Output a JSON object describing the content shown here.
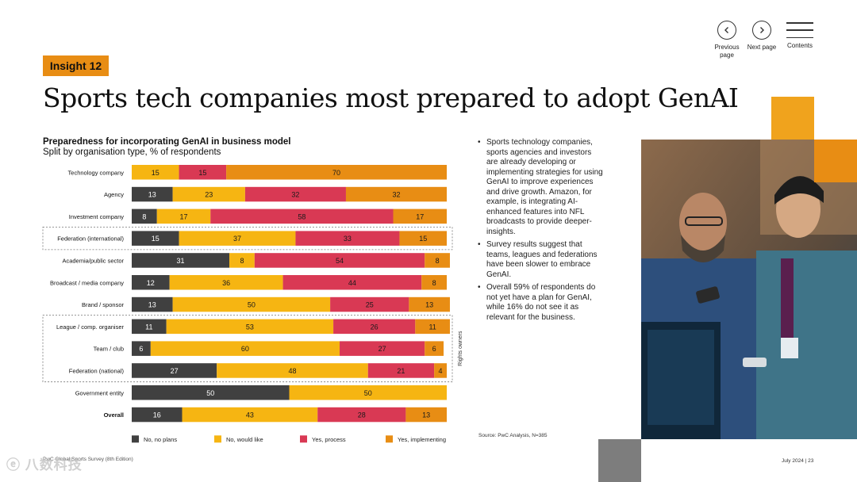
{
  "nav": {
    "previous_label": "Previous page",
    "next_label": "Next page",
    "contents_label": "Contents"
  },
  "tag": "Insight 12",
  "title": "Sports tech companies most prepared to adopt GenAI",
  "bullets": [
    "Sports technology companies, sports agencies and investors are already developing or implementing strategies for using GenAI to improve experiences and drive growth. Amazon, for example, is integrating AI-enhanced features into NFL broadcasts to provide deeper-insights.",
    "Survey results suggest that teams, leagues and federations have been slower to embrace GenAI.",
    "Overall 59% of respondents do not yet have a plan for GenAI, while 16% do not see it as relevant for the business."
  ],
  "source": "Source: PwC Analysis, N=385",
  "footer": {
    "left": "PwC Global Sports Survey (8th Edition)",
    "right": "July 2024 | 23"
  },
  "watermark": "八数科技",
  "colors": {
    "accent": "#e88d14",
    "no_plans": "#404040",
    "would_like": "#f6b512",
    "process": "#d93954",
    "implementing": "#e88d14"
  },
  "chart_data": {
    "type": "bar",
    "orientation": "horizontal",
    "stacked": true,
    "title": "Preparedness for incorporating GenAI in business model",
    "subtitle": "Split by organisation type, % of respondents",
    "categories": [
      "Technology company",
      "Agency",
      "Investment company",
      "Federation (international)",
      "Academia/public sector",
      "Broadcast / media company",
      "Brand / sponsor",
      "League / comp. organiser",
      "Team / club",
      "Federation (national)",
      "Government entity",
      "Overall"
    ],
    "series": [
      {
        "name": "No, no plans",
        "color": "#404040",
        "values": [
          0,
          13,
          8,
          15,
          31,
          12,
          13,
          11,
          6,
          27,
          50,
          16
        ]
      },
      {
        "name": "No, would like",
        "color": "#f6b512",
        "values": [
          15,
          23,
          17,
          37,
          8,
          36,
          50,
          53,
          60,
          48,
          50,
          43
        ]
      },
      {
        "name": "Yes, process",
        "color": "#d93954",
        "values": [
          15,
          32,
          58,
          33,
          54,
          44,
          25,
          26,
          27,
          21,
          0,
          28
        ]
      },
      {
        "name": "Yes, implementing",
        "color": "#e88d14",
        "values": [
          70,
          32,
          17,
          15,
          8,
          8,
          13,
          11,
          6,
          4,
          0,
          13
        ]
      }
    ],
    "xlim": [
      0,
      100
    ],
    "grouped_annotation": "Rights owners",
    "legend_position": "bottom"
  }
}
